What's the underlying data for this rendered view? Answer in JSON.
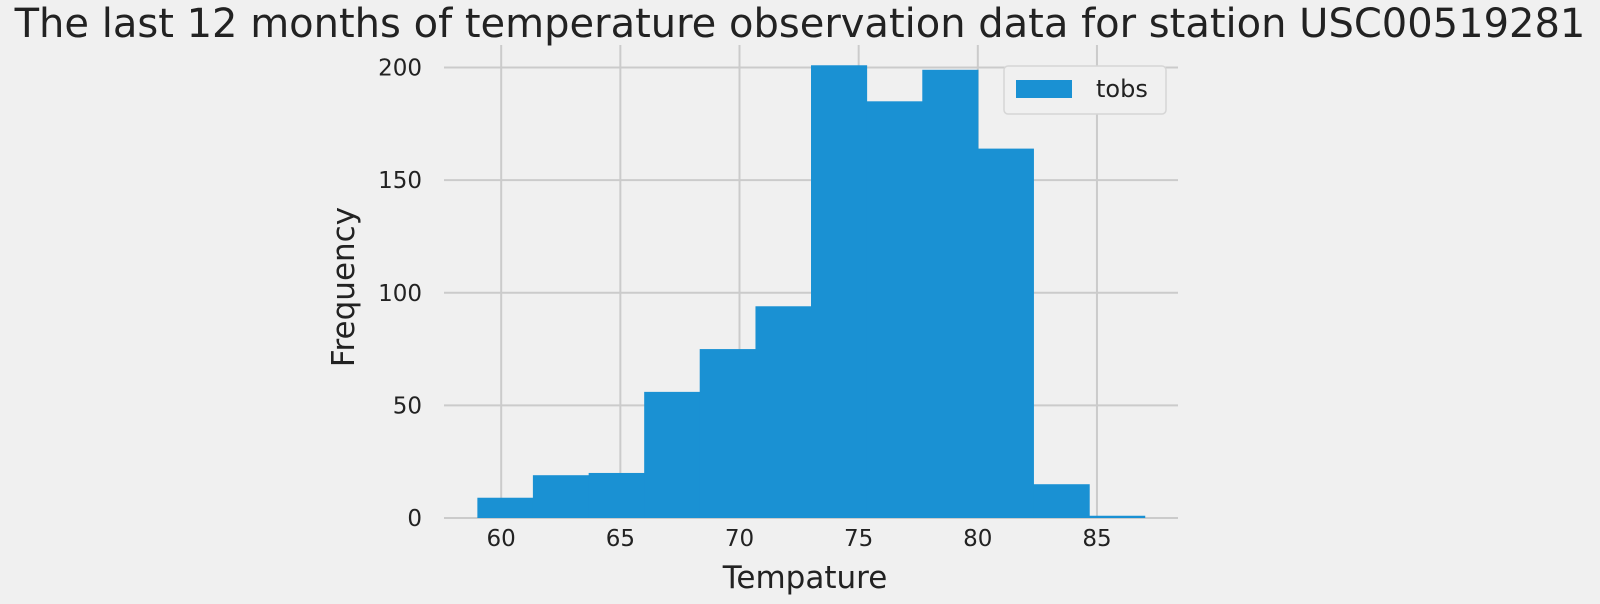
{
  "chart_data": {
    "type": "bar",
    "title": "The last 12 months of temperature observation data for station USC00519281",
    "xlabel": "Tempature",
    "ylabel": "Frequency",
    "xlim": [
      57.6,
      88.4
    ],
    "ylim": [
      0,
      210
    ],
    "xticks": [
      60,
      65,
      70,
      75,
      80,
      85
    ],
    "yticks": [
      0,
      50,
      100,
      150,
      200
    ],
    "grid": true,
    "legend_position": "top-right",
    "colors": {
      "bar": "#1a91d3",
      "grid": "#cbcbcb",
      "background": "#f0f0f0"
    },
    "series": [
      {
        "name": "tobs",
        "bin_edges": [
          59.0,
          61.33,
          63.67,
          66.0,
          68.33,
          70.67,
          73.0,
          75.33,
          77.67,
          80.0,
          82.33,
          84.67,
          87.0
        ],
        "values": [
          9,
          19,
          20,
          56,
          75,
          94,
          201,
          185,
          199,
          164,
          15,
          1
        ]
      }
    ]
  }
}
